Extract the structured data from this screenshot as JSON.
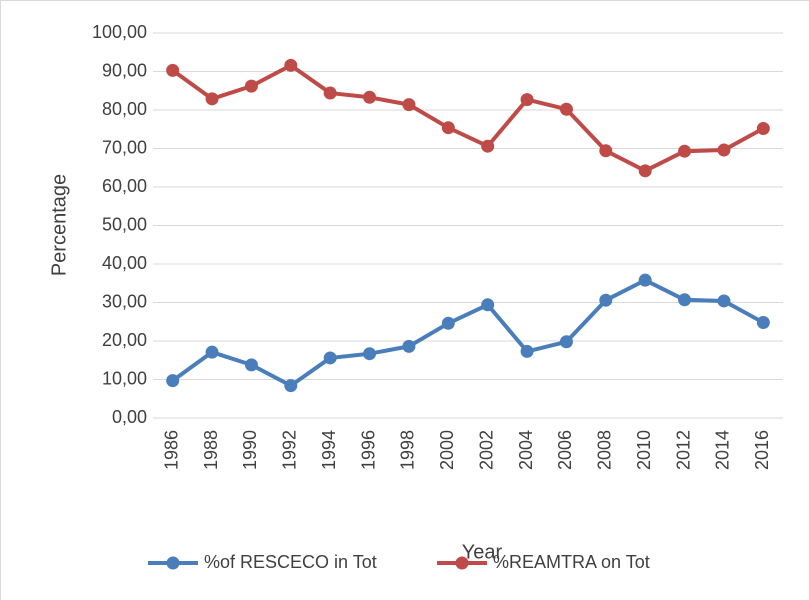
{
  "chart_data": {
    "type": "line",
    "ylabel": "Percentage",
    "xlabel": "Year",
    "categories": [
      "1986",
      "1988",
      "1990",
      "1992",
      "1994",
      "1996",
      "1998",
      "2000",
      "2002",
      "2004",
      "2006",
      "2008",
      "2010",
      "2012",
      "2014",
      "2016"
    ],
    "series": [
      {
        "name": "%of RESCECO in Tot",
        "color": "#4a7ebb",
        "values": [
          9.7,
          17.1,
          13.8,
          8.4,
          15.6,
          16.7,
          18.6,
          24.6,
          29.4,
          17.3,
          19.8,
          30.6,
          35.8,
          30.7,
          30.4,
          24.8
        ]
      },
      {
        "name": "%REAMTRA on Tot",
        "color": "#be4b48",
        "values": [
          90.3,
          82.9,
          86.2,
          91.6,
          84.4,
          83.3,
          81.4,
          75.4,
          70.6,
          82.7,
          80.2,
          69.4,
          64.2,
          69.3,
          69.6,
          75.2
        ]
      }
    ],
    "ylim": [
      0,
      100
    ],
    "yticks": [
      {
        "value": 0,
        "label": "0,00"
      },
      {
        "value": 10,
        "label": "10,00"
      },
      {
        "value": 20,
        "label": "20,00"
      },
      {
        "value": 30,
        "label": "30,00"
      },
      {
        "value": 40,
        "label": "40,00"
      },
      {
        "value": 50,
        "label": "50,00"
      },
      {
        "value": 60,
        "label": "60,00"
      },
      {
        "value": 70,
        "label": "70,00"
      },
      {
        "value": 80,
        "label": "80,00"
      },
      {
        "value": 90,
        "label": "90,00"
      },
      {
        "value": 100,
        "label": "100,00"
      }
    ],
    "grid": true,
    "legend": "bottom"
  }
}
